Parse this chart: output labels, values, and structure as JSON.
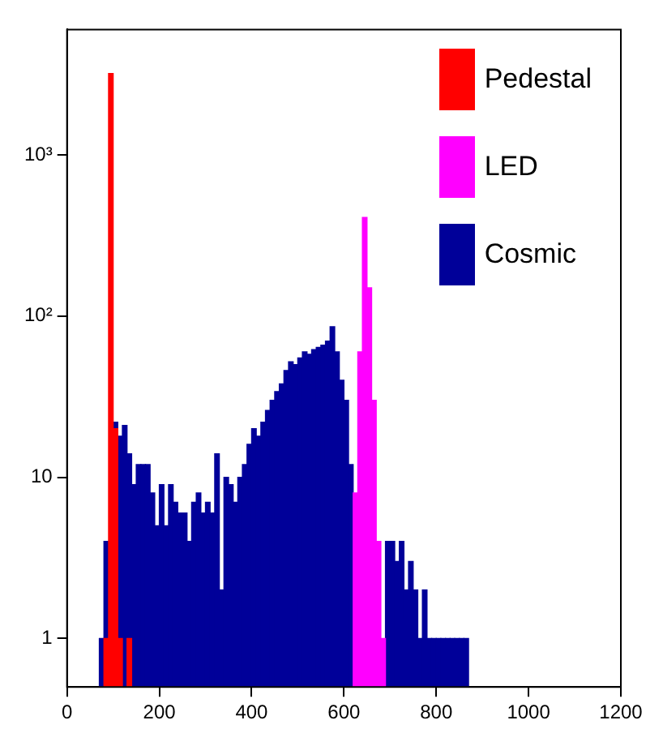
{
  "chart_data": {
    "type": "histogram",
    "log": "y",
    "grid": false,
    "legend": "top right",
    "bins": [
      0,
      10,
      20,
      30,
      40,
      50,
      60,
      70,
      80,
      90,
      100,
      110,
      120,
      130,
      140,
      150,
      160,
      170,
      180,
      190,
      200,
      210,
      220,
      230,
      240,
      250,
      260,
      270,
      280,
      290,
      300,
      310,
      320,
      330,
      340,
      350,
      360,
      370,
      380,
      390,
      400,
      410,
      420,
      430,
      440,
      450,
      460,
      470,
      480,
      490,
      500,
      510,
      520,
      530,
      540,
      550,
      560,
      570,
      580,
      590,
      600,
      610,
      620,
      630,
      640,
      650,
      660,
      670,
      680,
      690,
      700,
      710,
      720,
      730,
      740,
      750,
      760,
      770,
      780,
      790,
      800,
      810,
      820,
      830,
      840,
      850,
      860,
      870,
      880,
      890,
      900,
      910,
      920,
      930,
      940,
      950,
      960,
      970,
      980,
      990,
      1000,
      1010,
      1020,
      1030,
      1040,
      1050,
      1060,
      1070,
      1080,
      1090,
      1100,
      1110,
      1120,
      1130,
      1140,
      1150,
      1160,
      1170,
      1180,
      1190,
      1200
    ],
    "xlim": [
      0,
      1200
    ],
    "xticks": [
      0,
      200,
      400,
      600,
      800,
      1000,
      1200
    ],
    "ylim": [
      0.5,
      6000
    ],
    "yticks": [
      1,
      10,
      {
        "value": 100,
        "label": "10²"
      },
      {
        "value": 1000,
        "label": "10³"
      }
    ],
    "series": [
      {
        "name": "Pedestal",
        "color": "#ff0000",
        "values": [
          null,
          null,
          null,
          null,
          null,
          null,
          null,
          null,
          1,
          3200,
          20,
          1,
          null,
          1,
          null,
          null,
          null,
          null,
          null,
          null,
          null,
          null,
          null,
          null,
          null,
          null,
          null,
          null,
          null,
          null,
          null,
          null,
          null,
          null,
          null,
          null,
          null,
          null,
          null,
          null,
          null,
          null,
          null,
          null,
          null,
          null,
          null,
          null,
          null,
          null,
          null,
          null,
          null,
          null,
          null,
          null,
          null,
          null,
          null,
          null,
          null,
          null,
          null,
          null,
          null,
          null,
          null,
          null,
          null,
          null,
          null,
          null,
          null,
          null,
          null,
          null,
          null,
          null,
          null,
          null,
          null,
          null,
          null,
          null,
          null,
          null,
          null,
          null,
          null,
          null,
          null,
          null,
          null,
          null,
          null,
          null,
          null,
          null,
          null,
          null,
          null,
          null,
          null,
          null,
          null,
          null,
          null,
          null,
          null,
          null,
          null,
          null,
          null,
          null,
          null,
          null,
          null,
          null,
          null,
          null
        ]
      },
      {
        "name": "LED",
        "color": "#ff00ff",
        "values": [
          null,
          null,
          null,
          null,
          null,
          null,
          null,
          null,
          null,
          null,
          null,
          null,
          null,
          null,
          null,
          null,
          null,
          null,
          null,
          null,
          null,
          null,
          null,
          null,
          null,
          null,
          null,
          null,
          null,
          null,
          null,
          null,
          null,
          null,
          null,
          null,
          null,
          null,
          null,
          null,
          null,
          null,
          null,
          null,
          null,
          null,
          null,
          null,
          null,
          null,
          null,
          null,
          null,
          null,
          null,
          null,
          null,
          null,
          null,
          null,
          null,
          null,
          8,
          60,
          410,
          150,
          30,
          4,
          1,
          null,
          null,
          null,
          null,
          null,
          null,
          null,
          null,
          null,
          null,
          null,
          null,
          null,
          null,
          null,
          null,
          null,
          null,
          null,
          null,
          null,
          null,
          null,
          null,
          null,
          null,
          null,
          null,
          null,
          null,
          null,
          null,
          null,
          null,
          null,
          null,
          null,
          null,
          null,
          null,
          null,
          null,
          null,
          null,
          null,
          null,
          null,
          null,
          null,
          null,
          null
        ]
      },
      {
        "name": "Cosmic",
        "color": "#000099",
        "values": [
          null,
          null,
          null,
          null,
          null,
          null,
          null,
          1,
          4,
          null,
          22,
          18,
          21,
          14,
          9,
          12,
          12,
          12,
          8,
          5,
          9,
          5,
          9,
          7,
          6,
          6,
          4,
          7,
          8,
          6,
          7,
          6,
          14,
          2,
          10,
          9,
          7,
          10,
          12,
          16,
          20,
          18,
          22,
          26,
          30,
          34,
          38,
          46,
          52,
          50,
          55,
          60,
          58,
          62,
          64,
          66,
          70,
          86,
          60,
          40,
          30,
          12,
          null,
          null,
          null,
          null,
          null,
          null,
          null,
          4,
          4,
          3,
          4,
          2,
          3,
          2,
          1,
          2,
          1,
          1,
          1,
          1,
          1,
          1,
          1,
          1,
          1,
          null,
          null,
          null,
          null,
          null,
          null,
          null,
          null,
          null,
          null,
          null,
          null,
          null,
          null,
          null,
          null,
          null,
          null,
          null,
          null,
          null,
          null,
          null,
          null,
          null,
          null,
          null,
          null,
          null,
          null,
          null,
          null,
          null
        ]
      }
    ]
  }
}
